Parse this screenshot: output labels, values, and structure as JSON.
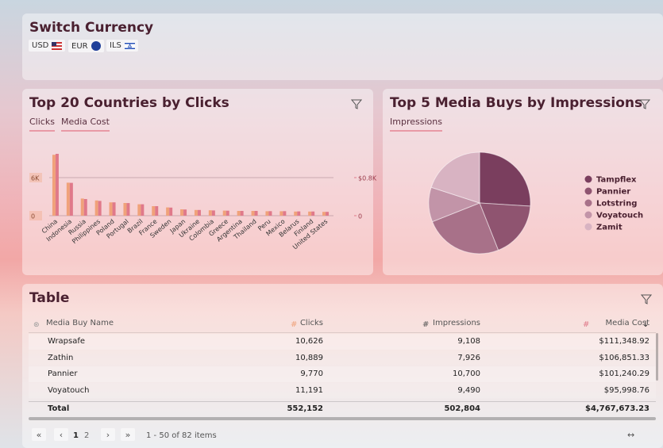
{
  "header": {
    "title": "Switch Currency",
    "currencies": [
      "USD",
      "EUR",
      "ILS"
    ]
  },
  "chart_data": [
    {
      "type": "bar",
      "title": "Top 20 Countries by Clicks",
      "tabs": [
        "Clicks",
        "Media Cost"
      ],
      "categories": [
        "China",
        "Indonesia",
        "Russia",
        "Philippines",
        "Poland",
        "Portugal",
        "Brazil",
        "France",
        "Sweden",
        "Japan",
        "Ukraine",
        "Colombia",
        "Greece",
        "Argentina",
        "Thailand",
        "Peru",
        "Mexico",
        "Belarus",
        "Finland",
        "United States"
      ],
      "series": [
        {
          "name": "Clicks",
          "color": "#f0a27a",
          "values": [
            9600,
            5200,
            2700,
            2400,
            2100,
            2000,
            1800,
            1500,
            1300,
            1000,
            900,
            850,
            800,
            750,
            750,
            700,
            700,
            650,
            650,
            600
          ]
        },
        {
          "name": "Media Cost",
          "color": "#e0798a",
          "axis": "y2",
          "values": [
            1300,
            690,
            350,
            310,
            280,
            265,
            240,
            200,
            170,
            130,
            120,
            110,
            105,
            100,
            100,
            95,
            95,
            90,
            88,
            80
          ]
        }
      ],
      "ylim": [
        0,
        12000
      ],
      "yticks": [
        0,
        {
          "value": 6000,
          "label": "6K"
        }
      ],
      "y2lim": [
        0,
        1600
      ],
      "y2ticks": [
        0,
        {
          "value": 800,
          "label": "$0.8K"
        }
      ],
      "grid": true
    },
    {
      "type": "pie",
      "title": "Top 5 Media Buys by Impressions",
      "tabs": [
        "Impressions"
      ],
      "categories": [
        "Tampflex",
        "Pannier",
        "Lotstring",
        "Voyatouch",
        "Zamit"
      ],
      "values": [
        26,
        18,
        25,
        11,
        20
      ],
      "colors": [
        "#7a3e5e",
        "#8f5470",
        "#a87189",
        "#c294a8",
        "#d8b3c2"
      ]
    }
  ],
  "table": {
    "title": "Table",
    "columns": [
      "Media Buy Name",
      "Clicks",
      "Impressions",
      "Media Cost"
    ],
    "rows": [
      [
        "Wrapsafe",
        "10,626",
        "9,108",
        "$111,348.92"
      ],
      [
        "Zathin",
        "10,889",
        "7,926",
        "$106,851.33"
      ],
      [
        "Pannier",
        "9,770",
        "10,700",
        "$101,240.29"
      ],
      [
        "Voyatouch",
        "11,191",
        "9,490",
        "$95,998.76"
      ]
    ],
    "total": [
      "Total",
      "552,152",
      "502,804",
      "$4,767,673.23"
    ],
    "pages": [
      "1",
      "2"
    ],
    "page_info": "1 - 50 of 82 items"
  }
}
